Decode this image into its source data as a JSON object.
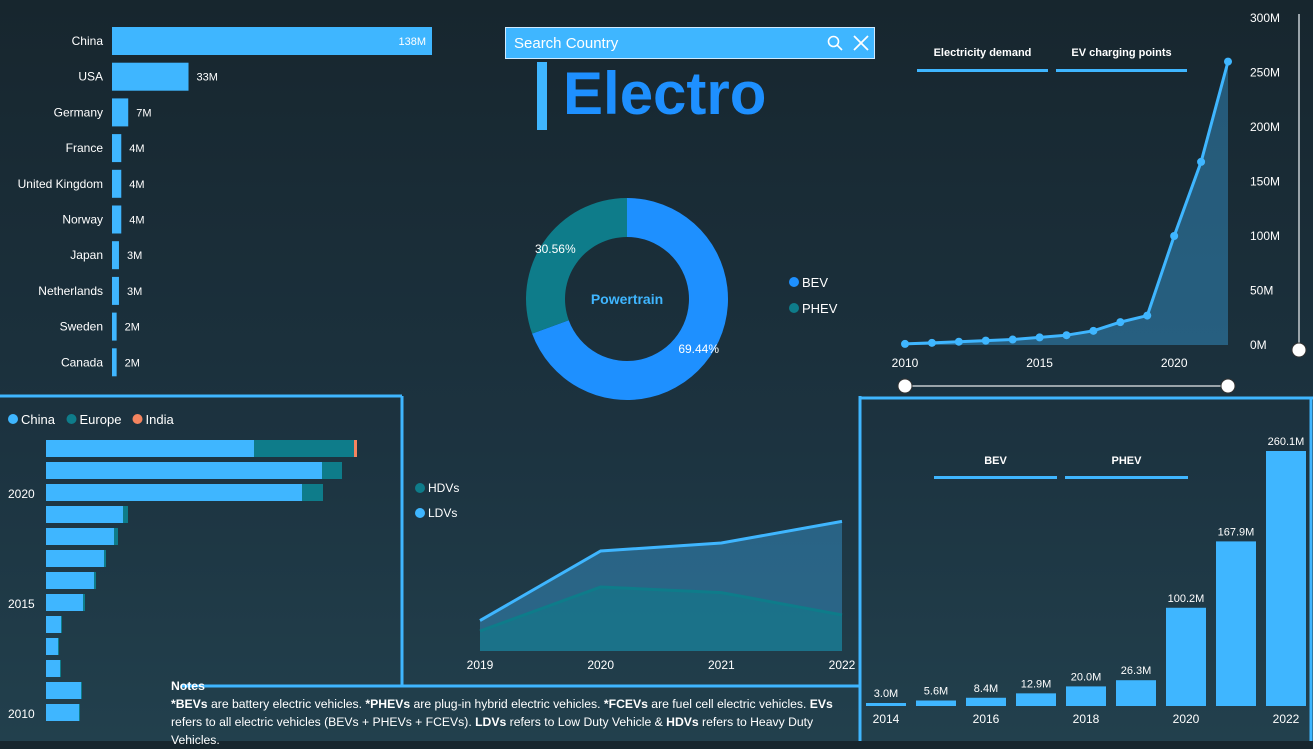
{
  "search": {
    "placeholder": "Search Country"
  },
  "title": "Electro",
  "colors": {
    "accent": "#3fb6ff",
    "bev": "#1e90ff",
    "phev": "#0e7c8a",
    "china": "#3fb6ff",
    "europe": "#0e7c8a",
    "india": "#f4845f"
  },
  "country_chart": {
    "type": "bar",
    "categories": [
      "China",
      "USA",
      "Germany",
      "France",
      "United Kingdom",
      "Norway",
      "Japan",
      "Netherlands",
      "Sweden",
      "Canada"
    ],
    "values": [
      138,
      33,
      7,
      4,
      4,
      4,
      3,
      3,
      2,
      2
    ],
    "labels": [
      "138M",
      "33M",
      "7M",
      "4M",
      "4M",
      "4M",
      "3M",
      "3M",
      "2M",
      "2M"
    ]
  },
  "donut": {
    "center_label": "Powertrain",
    "slices": [
      {
        "name": "BEV",
        "value": 69.44,
        "label": "69.44%"
      },
      {
        "name": "PHEV",
        "value": 30.56,
        "label": "30.56%"
      }
    ]
  },
  "top_right_tabs": [
    "Electricity demand",
    "EV charging points"
  ],
  "line_chart": {
    "type": "area",
    "x": [
      2010,
      2011,
      2012,
      2013,
      2014,
      2015,
      2016,
      2017,
      2018,
      2019,
      2020,
      2021,
      2022
    ],
    "values": [
      1,
      2,
      3,
      4,
      5,
      7,
      9,
      13,
      21,
      27,
      100,
      168,
      260
    ],
    "x_ticks": [
      "2010",
      "2015",
      "2020"
    ],
    "y_ticks": [
      "300M",
      "250M",
      "200M",
      "150M",
      "100M",
      "50M",
      "0M"
    ],
    "ylim": [
      0,
      300
    ]
  },
  "stacked_chart": {
    "type": "bar",
    "legend": [
      "China",
      "Europe",
      "India"
    ],
    "y_ticks": [
      "2020",
      "2015",
      "2010"
    ],
    "rows": [
      {
        "china": 208,
        "europe": 100,
        "india": 3
      },
      {
        "china": 276,
        "europe": 20,
        "india": 0
      },
      {
        "china": 256,
        "europe": 21,
        "india": 0
      },
      {
        "china": 77,
        "europe": 5,
        "india": 0
      },
      {
        "china": 68,
        "europe": 4,
        "india": 0
      },
      {
        "china": 58,
        "europe": 2,
        "india": 0
      },
      {
        "china": 48,
        "europe": 2,
        "india": 0
      },
      {
        "china": 37,
        "europe": 2,
        "india": 0
      },
      {
        "china": 15,
        "europe": 1,
        "india": 0
      },
      {
        "china": 12,
        "europe": 1,
        "india": 0
      },
      {
        "china": 14,
        "europe": 1,
        "india": 0
      },
      {
        "china": 35,
        "europe": 1,
        "india": 0
      },
      {
        "china": 33,
        "europe": 1,
        "india": 0
      }
    ]
  },
  "area_chart": {
    "type": "area",
    "legend": [
      "HDVs",
      "LDVs"
    ],
    "x": [
      "2019",
      "2020",
      "2021",
      "2022"
    ],
    "ldv": [
      38,
      125,
      135,
      162
    ],
    "hdv": [
      25,
      80,
      73,
      45
    ],
    "ylim": [
      0,
      200
    ]
  },
  "bev_tabs": [
    "BEV",
    "PHEV"
  ],
  "column_chart": {
    "type": "bar",
    "categories": [
      "2014",
      "2015",
      "2016",
      "2017",
      "2018",
      "2019",
      "2020",
      "2021",
      "2022"
    ],
    "values": [
      3.0,
      5.6,
      8.4,
      12.9,
      20.0,
      26.3,
      100.2,
      167.9,
      260.1
    ],
    "labels": [
      "3.0M",
      "5.6M",
      "8.4M",
      "12.9M",
      "20.0M",
      "26.3M",
      "100.2M",
      "167.9M",
      "260.1M"
    ],
    "x_ticks": [
      "2014",
      "2016",
      "2018",
      "2020",
      "2022"
    ]
  },
  "notes": {
    "title": "Notes",
    "p1_b": "*BEVs",
    "p1": " are battery electric vehicles. ",
    "p2_b": "*PHEVs",
    "p2": " are plug-in hybrid electric vehicles. ",
    "p3_b": "*FCEVs",
    "p3": " are fuel cell electric vehicles. ",
    "p4_b": "EVs",
    "p4": " refers to all electric vehicles (BEVs + PHEVs + FCEVs).  ",
    "p5_b": "LDVs",
    "p5": " refers to Low Duty Vehicle & ",
    "p6_b": "HDVs",
    "p6": " refers to Heavy Duty Vehicles."
  }
}
